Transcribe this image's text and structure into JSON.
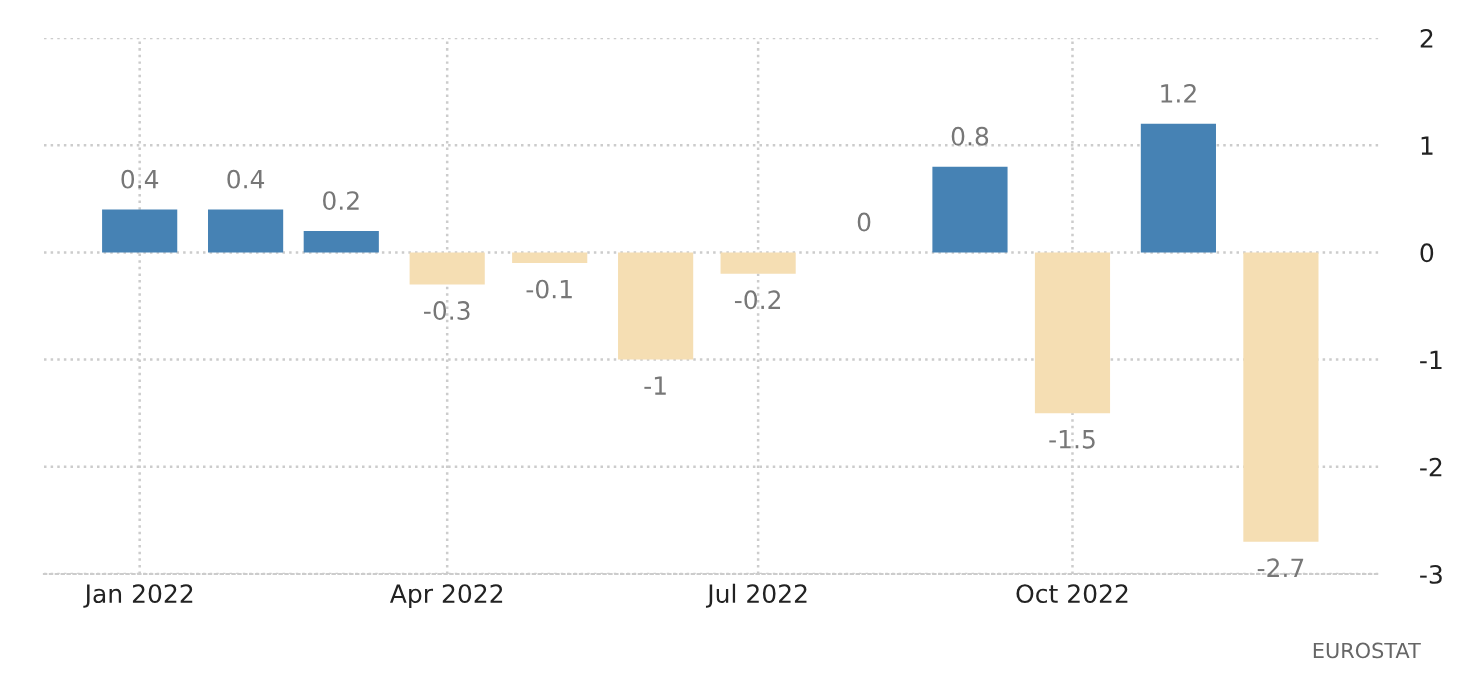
{
  "chart_data": {
    "type": "bar",
    "x": [
      "2022-01",
      "2022-02",
      "2022-03",
      "2022-04",
      "2022-05",
      "2022-06",
      "2022-07",
      "2022-08",
      "2022-09",
      "2022-10",
      "2022-11",
      "2022-12"
    ],
    "values": [
      0.4,
      0.4,
      0.2,
      -0.3,
      -0.1,
      -1,
      -0.2,
      0,
      0.8,
      -1.5,
      1.2,
      -2.7
    ],
    "colors": [
      "#4682b4",
      "#4682b4",
      "#4682b4",
      "#f5deb3",
      "#f5deb3",
      "#f5deb3",
      "#f5deb3",
      "#4682b4",
      "#4682b4",
      "#f5deb3",
      "#4682b4",
      "#f5deb3"
    ],
    "data_labels": true,
    "xlim": [
      "2021-12-04",
      "2022-12-30"
    ],
    "xticks": [
      {
        "value": "2022-01",
        "label": "Jan 2022"
      },
      {
        "value": "2022-04",
        "label": "Apr 2022"
      },
      {
        "value": "2022-07",
        "label": "Jul 2022"
      },
      {
        "value": "2022-10",
        "label": "Oct 2022"
      }
    ],
    "ylim": [
      -3,
      2
    ],
    "yticks": [
      -3,
      -2,
      -1,
      0,
      1,
      2
    ],
    "grid": true,
    "annotations": [
      "EUROSTAT"
    ]
  }
}
